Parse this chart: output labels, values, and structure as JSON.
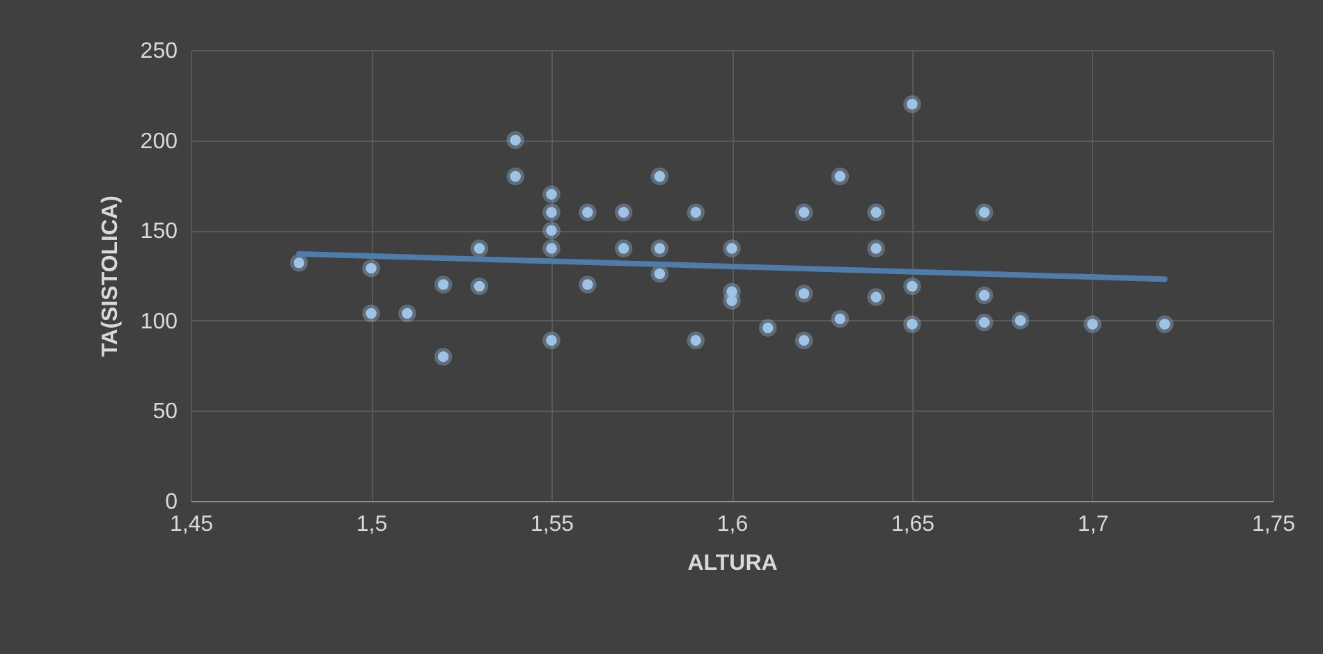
{
  "chart_data": {
    "type": "scatter",
    "xlabel": "ALTURA",
    "ylabel": "TA(SISTOLICA)",
    "xlim": [
      1.45,
      1.75
    ],
    "xticks": [
      {
        "value": 1.45,
        "label": "1,45"
      },
      {
        "value": 1.5,
        "label": "1,5"
      },
      {
        "value": 1.55,
        "label": "1,55"
      },
      {
        "value": 1.6,
        "label": "1,6"
      },
      {
        "value": 1.65,
        "label": "1,65"
      },
      {
        "value": 1.7,
        "label": "1,7"
      },
      {
        "value": 1.75,
        "label": "1,75"
      }
    ],
    "ylim": [
      0,
      250
    ],
    "yticks": [
      0,
      50,
      100,
      150,
      200,
      250
    ],
    "grid": true,
    "series": [
      {
        "marker": "circle",
        "color": "#9dc3e6",
        "x": [
          1.48,
          1.5,
          1.5,
          1.51,
          1.52,
          1.52,
          1.53,
          1.53,
          1.54,
          1.54,
          1.55,
          1.55,
          1.55,
          1.55,
          1.55,
          1.56,
          1.56,
          1.57,
          1.57,
          1.58,
          1.58,
          1.58,
          1.59,
          1.59,
          1.6,
          1.6,
          1.6,
          1.61,
          1.62,
          1.62,
          1.62,
          1.63,
          1.63,
          1.64,
          1.64,
          1.64,
          1.65,
          1.65,
          1.65,
          1.67,
          1.67,
          1.67,
          1.68,
          1.7,
          1.72
        ],
        "values": [
          132,
          129,
          104,
          104,
          120,
          80,
          140,
          119,
          200,
          180,
          170,
          160,
          150,
          140,
          89,
          160,
          120,
          160,
          140,
          180,
          140,
          126,
          160,
          89,
          140,
          116,
          111,
          96,
          160,
          115,
          89,
          180,
          101,
          160,
          140,
          113,
          220,
          119,
          98,
          160,
          114,
          99,
          100,
          98,
          98
        ]
      },
      {
        "type": "line",
        "marker": "none",
        "color": "#4f7dab",
        "x": [
          1.48,
          1.72
        ],
        "values": [
          137,
          123
        ]
      }
    ]
  }
}
